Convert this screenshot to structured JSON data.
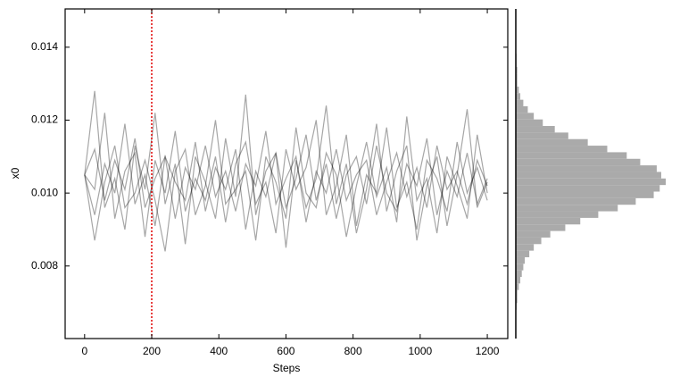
{
  "chart_data": [
    {
      "type": "trace",
      "xlabel": "Steps",
      "ylabel": "x0",
      "x": [
        0,
        30,
        60,
        90,
        120,
        150,
        180,
        210,
        240,
        270,
        300,
        330,
        360,
        390,
        420,
        450,
        480,
        510,
        540,
        570,
        600,
        630,
        660,
        690,
        720,
        750,
        780,
        810,
        840,
        870,
        900,
        930,
        960,
        990,
        1020,
        1050,
        1080,
        1110,
        1140,
        1170,
        1200
      ],
      "series": [
        {
          "color": "#000000",
          "values": [
            0.0105,
            0.0112,
            0.0098,
            0.0109,
            0.0101,
            0.0115,
            0.0096,
            0.0104,
            0.011,
            0.0093,
            0.0107,
            0.0101,
            0.0113,
            0.0099,
            0.0106,
            0.0095,
            0.0108,
            0.0102,
            0.0117,
            0.0097,
            0.0104,
            0.011,
            0.0092,
            0.0106,
            0.01,
            0.0112,
            0.0098,
            0.0105,
            0.0109,
            0.0094,
            0.0103,
            0.0111,
            0.0099,
            0.0107,
            0.0096,
            0.0113,
            0.0101,
            0.0106,
            0.0097,
            0.0109,
            0.0102
          ]
        },
        {
          "color": "#000000",
          "values": [
            0.0105,
            0.0094,
            0.0108,
            0.01,
            0.0119,
            0.0097,
            0.0105,
            0.0091,
            0.011,
            0.0103,
            0.0098,
            0.0114,
            0.0095,
            0.0107,
            0.0101,
            0.0112,
            0.009,
            0.0106,
            0.0099,
            0.0111,
            0.0096,
            0.0104,
            0.0116,
            0.0098,
            0.0108,
            0.0093,
            0.0105,
            0.011,
            0.0097,
            0.0113,
            0.01,
            0.0095,
            0.0108,
            0.0102,
            0.0115,
            0.0094,
            0.0106,
            0.0099,
            0.0111,
            0.0097,
            0.0104
          ]
        },
        {
          "color": "#000000",
          "values": [
            0.0105,
            0.0101,
            0.0122,
            0.0093,
            0.0106,
            0.0111,
            0.0088,
            0.0109,
            0.01,
            0.0117,
            0.0095,
            0.0104,
            0.0098,
            0.011,
            0.0092,
            0.0108,
            0.0114,
            0.0097,
            0.0103,
            0.0089,
            0.0112,
            0.0101,
            0.0107,
            0.012,
            0.0094,
            0.0102,
            0.0116,
            0.0091,
            0.0105,
            0.01,
            0.0118,
            0.0096,
            0.0103,
            0.009,
            0.0109,
            0.0104,
            0.0095,
            0.0114,
            0.01,
            0.0107,
            0.0098
          ]
        },
        {
          "color": "#000000",
          "values": [
            0.0105,
            0.0087,
            0.0103,
            0.0113,
            0.0096,
            0.01,
            0.0109,
            0.0098,
            0.0084,
            0.0106,
            0.0112,
            0.0094,
            0.0102,
            0.012,
            0.0097,
            0.0101,
            0.0106,
            0.0087,
            0.011,
            0.0103,
            0.0093,
            0.0118,
            0.01,
            0.0096,
            0.0111,
            0.0105,
            0.0088,
            0.0102,
            0.0114,
            0.0099,
            0.0107,
            0.0092,
            0.0121,
            0.0098,
            0.0104,
            0.0089,
            0.011,
            0.0102,
            0.0093,
            0.0116,
            0.01
          ]
        },
        {
          "color": "#000000",
          "values": [
            0.0105,
            0.0128,
            0.0096,
            0.0104,
            0.009,
            0.0113,
            0.0101,
            0.0122,
            0.0097,
            0.0108,
            0.0086,
            0.011,
            0.0103,
            0.0093,
            0.0115,
            0.0099,
            0.0127,
            0.0094,
            0.0106,
            0.0111,
            0.0085,
            0.0109,
            0.0096,
            0.0104,
            0.0124,
            0.0097,
            0.0108,
            0.0089,
            0.0101,
            0.0119,
            0.0095,
            0.0106,
            0.0113,
            0.0087,
            0.0102,
            0.011,
            0.0091,
            0.0105,
            0.0123,
            0.0096,
            0.0103
          ]
        }
      ],
      "xlim": [
        -58,
        1261
      ],
      "xticks": [
        0,
        200,
        400,
        600,
        800,
        1000,
        1200
      ],
      "ylim": [
        0.00601,
        0.01505
      ],
      "yticks": [
        0.008,
        {
          "value": 0.01,
          "label": "0.010"
        },
        0.012,
        0.014
      ],
      "vline": {
        "x": 200,
        "color": "#e00000",
        "style": "dotted"
      }
    },
    {
      "type": "histogram",
      "orientation": "horizontal",
      "color": "#aaaaaa",
      "ylim": [
        0.00601,
        0.01505
      ],
      "bins": [
        0.0068,
        0.00698,
        0.00716,
        0.00734,
        0.00752,
        0.0077,
        0.00788,
        0.00806,
        0.00824,
        0.00842,
        0.0086,
        0.00878,
        0.00896,
        0.00914,
        0.00932,
        0.0095,
        0.00968,
        0.00986,
        0.01004,
        0.01022,
        0.0104,
        0.01058,
        0.01076,
        0.01094,
        0.01112,
        0.0113,
        0.01148,
        0.01166,
        0.01184,
        0.01202,
        0.0122,
        0.01238,
        0.01256,
        0.01274,
        0.01292,
        0.0131,
        0.01328,
        0.01346,
        0.01364,
        0.01382,
        0.014
      ],
      "values": [
        0.5,
        1,
        1,
        2,
        3,
        4,
        5,
        6,
        9,
        12,
        17,
        23,
        33,
        43,
        55,
        68,
        80,
        92,
        96,
        100,
        97,
        94,
        83,
        74,
        61,
        48,
        35,
        26,
        18,
        12,
        8,
        5,
        3,
        2,
        1,
        1,
        1,
        0.5,
        0.5,
        0
      ]
    }
  ]
}
